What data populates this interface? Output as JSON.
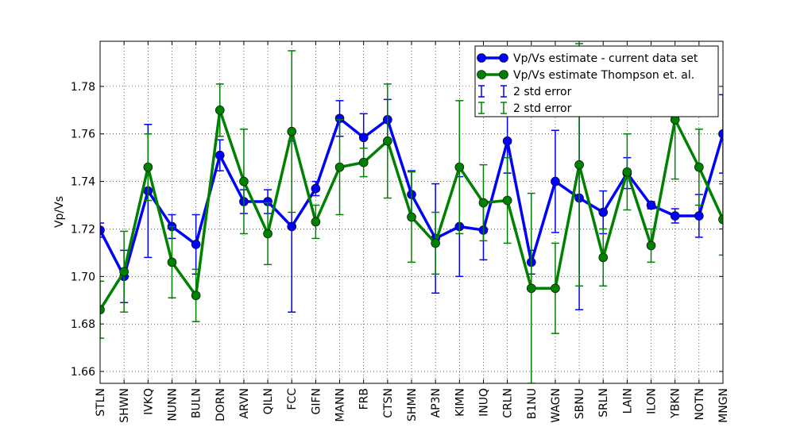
{
  "chart_data": {
    "type": "line",
    "title": "",
    "xlabel": "",
    "ylabel": "Vp/Vs",
    "ylim": [
      1.655,
      1.799
    ],
    "yticks": [
      1.66,
      1.68,
      1.7,
      1.72,
      1.74,
      1.76,
      1.78
    ],
    "grid": true,
    "legend_position": "top-right",
    "categories": [
      "STLN",
      "SHWN",
      "IVKQ",
      "NUNN",
      "BULN",
      "DORN",
      "ARVN",
      "QILN",
      "FCC",
      "GIFN",
      "MANN",
      "FRB",
      "CTSN",
      "SHMN",
      "AP3N",
      "KIMN",
      "INUQ",
      "CRLN",
      "B1NU",
      "WAGN",
      "SBNU",
      "SRLN",
      "LAIN",
      "ILON",
      "YBKN",
      "NOTN",
      "MNGN"
    ],
    "series": [
      {
        "name": "Vp/Vs estimate -  current data set",
        "color": "#0000ff",
        "values": [
          1.7195,
          1.7,
          1.736,
          1.721,
          1.7135,
          1.751,
          1.7315,
          1.7315,
          1.721,
          1.737,
          1.7665,
          1.7585,
          1.766,
          1.7345,
          1.716,
          1.721,
          1.7195,
          1.757,
          1.706,
          1.74,
          1.733,
          1.727,
          1.7435,
          1.73,
          1.7255,
          1.7255,
          1.76
        ],
        "error_2std": [
          0.003,
          0.011,
          0.028,
          0.005,
          0.0125,
          0.0065,
          0.005,
          0.005,
          0.036,
          0.003,
          0.0075,
          0.01,
          0.0085,
          0.01,
          0.023,
          0.021,
          0.0125,
          0.0135,
          0.005,
          0.0215,
          0.047,
          0.009,
          0.0065,
          0.0015,
          0.003,
          0.009,
          0.0165
        ]
      },
      {
        "name": "Vp/Vs estimate Thompson et. al.",
        "color": "#008000",
        "values": [
          1.686,
          1.702,
          1.746,
          1.706,
          1.692,
          1.77,
          1.74,
          1.718,
          1.761,
          1.723,
          1.746,
          1.748,
          1.757,
          1.725,
          1.714,
          1.746,
          1.731,
          1.732,
          1.695,
          1.695,
          1.747,
          1.708,
          1.744,
          1.713,
          1.766,
          1.746,
          1.724
        ],
        "error_2std": [
          0.012,
          0.017,
          0.014,
          0.015,
          0.011,
          0.011,
          0.022,
          0.013,
          0.034,
          0.007,
          0.02,
          0.006,
          0.024,
          0.019,
          0.013,
          0.028,
          0.016,
          0.018,
          0.04,
          0.019,
          0.051,
          0.012,
          0.016,
          0.007,
          0.025,
          0.016,
          0.015
        ]
      }
    ],
    "legend": [
      {
        "label": "Vp/Vs estimate -  current data set",
        "kind": "line-marker",
        "color": "#0000ff"
      },
      {
        "label": "Vp/Vs estimate Thompson et. al.",
        "kind": "line-marker",
        "color": "#008000"
      },
      {
        "label": "2 std error",
        "kind": "errorbar",
        "color": "#0000ff"
      },
      {
        "label": "2 std error",
        "kind": "errorbar",
        "color": "#008000"
      }
    ]
  }
}
